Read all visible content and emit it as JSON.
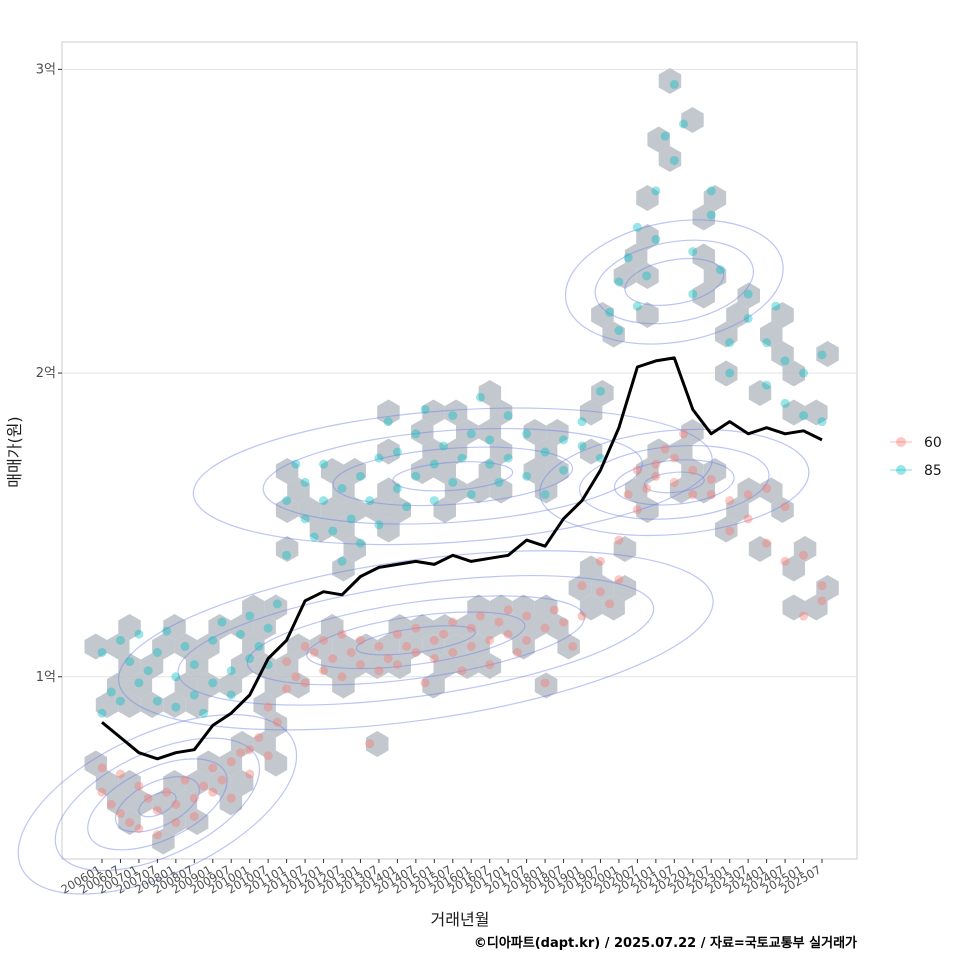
{
  "chart_data": {
    "type": "scatter",
    "ylabel": "매매가(원)",
    "xlabel": "거래년월",
    "caption": "©디아파트(dapt.kr) / 2025.07.22 / 자료=국토교통부 실거래가",
    "ylim": [
      0.4,
      3.09
    ],
    "y_ticks": [
      {
        "value": 1,
        "label": "1억"
      },
      {
        "value": 2,
        "label": "2억"
      },
      {
        "value": 3,
        "label": "3억"
      }
    ],
    "x_ticks": [
      "200601",
      "200607",
      "200701",
      "200707",
      "200801",
      "200807",
      "200901",
      "200907",
      "201001",
      "201007",
      "201101",
      "201107",
      "201201",
      "201207",
      "201301",
      "201307",
      "201401",
      "201407",
      "201501",
      "201507",
      "201601",
      "201607",
      "201701",
      "201707",
      "201801",
      "201807",
      "201901",
      "201907",
      "202001",
      "202007",
      "202101",
      "202107",
      "202201",
      "202207",
      "202301",
      "202307",
      "202401",
      "202407",
      "202501",
      "202507"
    ],
    "legend": {
      "items": [
        {
          "label": "60",
          "color": "#f8766d"
        },
        {
          "label": "85",
          "color": "#00bfc4"
        }
      ]
    },
    "colors": {
      "hex": "#b8bec6",
      "trend": "#000000",
      "contour": "#6b7fe6",
      "grid": "#e3e3e3",
      "frame": "#cccccc"
    },
    "trend_line": {
      "x_index": [
        0,
        1,
        2,
        3,
        4,
        5,
        6,
        7,
        8,
        9,
        10,
        11,
        12,
        13,
        14,
        15,
        16,
        17,
        18,
        19,
        20,
        21,
        22,
        23,
        24,
        25,
        26,
        27,
        28,
        29,
        30,
        31,
        32,
        33,
        34,
        35,
        36,
        37,
        38,
        39
      ],
      "values": [
        0.85,
        0.8,
        0.75,
        0.73,
        0.75,
        0.76,
        0.84,
        0.88,
        0.94,
        1.06,
        1.12,
        1.25,
        1.28,
        1.27,
        1.33,
        1.36,
        1.37,
        1.38,
        1.37,
        1.4,
        1.38,
        1.39,
        1.4,
        1.45,
        1.43,
        1.52,
        1.58,
        1.68,
        1.82,
        2.02,
        2.04,
        2.05,
        1.88,
        1.8,
        1.84,
        1.8,
        1.82,
        1.8,
        1.81,
        1.78
      ]
    },
    "series": [
      {
        "name": "60",
        "points": [
          [
            0,
            0.7
          ],
          [
            0,
            0.62
          ],
          [
            0.5,
            0.58
          ],
          [
            1,
            0.68
          ],
          [
            1,
            0.55
          ],
          [
            1.5,
            0.52
          ],
          [
            2,
            0.64
          ],
          [
            2,
            0.5
          ],
          [
            2.5,
            0.6
          ],
          [
            3,
            0.56
          ],
          [
            3,
            0.48
          ],
          [
            3.5,
            0.62
          ],
          [
            4,
            0.52
          ],
          [
            4,
            0.58
          ],
          [
            4.5,
            0.66
          ],
          [
            5,
            0.6
          ],
          [
            5,
            0.54
          ],
          [
            5.5,
            0.64
          ],
          [
            6,
            0.62
          ],
          [
            6,
            0.7
          ],
          [
            6.5,
            0.66
          ],
          [
            7,
            0.72
          ],
          [
            7,
            0.6
          ],
          [
            7.5,
            0.75
          ],
          [
            8,
            0.68
          ],
          [
            8,
            0.76
          ],
          [
            8.5,
            0.8
          ],
          [
            9,
            0.74
          ],
          [
            9,
            0.9
          ],
          [
            9.5,
            0.85
          ],
          [
            10,
            0.96
          ],
          [
            10,
            1.05
          ],
          [
            10.5,
            1.0
          ],
          [
            11,
            1.1
          ],
          [
            11,
            0.98
          ],
          [
            11.5,
            1.08
          ],
          [
            12,
            1.12
          ],
          [
            12,
            1.02
          ],
          [
            12.5,
            1.06
          ],
          [
            13,
            1.14
          ],
          [
            13,
            1.0
          ],
          [
            13.5,
            1.08
          ],
          [
            14,
            1.04
          ],
          [
            14,
            1.12
          ],
          [
            14.5,
            0.78
          ],
          [
            15,
            1.1
          ],
          [
            15,
            1.02
          ],
          [
            15.5,
            1.06
          ],
          [
            16,
            1.14
          ],
          [
            16,
            1.04
          ],
          [
            16.5,
            1.1
          ],
          [
            17,
            1.08
          ],
          [
            17,
            1.16
          ],
          [
            17.5,
            0.98
          ],
          [
            18,
            1.12
          ],
          [
            18,
            1.06
          ],
          [
            18.5,
            1.14
          ],
          [
            19,
            1.08
          ],
          [
            19,
            1.18
          ],
          [
            19.5,
            1.02
          ],
          [
            20,
            1.16
          ],
          [
            20,
            1.1
          ],
          [
            20.5,
            1.2
          ],
          [
            21,
            1.12
          ],
          [
            21,
            1.04
          ],
          [
            21.5,
            1.18
          ],
          [
            22,
            1.14
          ],
          [
            22,
            1.22
          ],
          [
            22.5,
            1.08
          ],
          [
            23,
            1.2
          ],
          [
            23,
            1.12
          ],
          [
            24,
            1.16
          ],
          [
            24,
            0.98
          ],
          [
            24.5,
            1.22
          ],
          [
            25,
            1.18
          ],
          [
            25.5,
            1.1
          ],
          [
            26,
            1.2
          ],
          [
            26,
            1.3
          ],
          [
            27,
            1.28
          ],
          [
            27,
            1.38
          ],
          [
            27.5,
            1.24
          ],
          [
            28,
            1.32
          ],
          [
            28,
            1.45
          ],
          [
            28.5,
            1.6
          ],
          [
            29,
            1.55
          ],
          [
            29,
            1.68
          ],
          [
            29.5,
            1.62
          ],
          [
            30,
            1.7
          ],
          [
            30,
            1.66
          ],
          [
            30.5,
            1.75
          ],
          [
            31,
            1.64
          ],
          [
            31,
            1.72
          ],
          [
            31.5,
            1.8
          ],
          [
            32,
            1.6
          ],
          [
            32,
            1.68
          ],
          [
            33,
            1.65
          ],
          [
            33,
            1.6
          ],
          [
            34,
            1.48
          ],
          [
            34,
            1.58
          ],
          [
            35,
            1.6
          ],
          [
            35,
            1.52
          ],
          [
            36,
            1.44
          ],
          [
            36,
            1.62
          ],
          [
            37,
            1.56
          ],
          [
            37,
            1.38
          ],
          [
            38,
            1.4
          ],
          [
            38,
            1.2
          ],
          [
            39,
            1.3
          ],
          [
            39,
            1.25
          ]
        ]
      },
      {
        "name": "85",
        "points": [
          [
            0,
            0.88
          ],
          [
            0,
            1.08
          ],
          [
            0.5,
            0.95
          ],
          [
            1,
            1.12
          ],
          [
            1,
            0.92
          ],
          [
            1.5,
            1.05
          ],
          [
            2,
            0.98
          ],
          [
            2,
            1.14
          ],
          [
            2.5,
            1.02
          ],
          [
            3,
            1.08
          ],
          [
            3,
            0.92
          ],
          [
            3.5,
            1.15
          ],
          [
            4,
            1.0
          ],
          [
            4,
            0.9
          ],
          [
            4.5,
            1.1
          ],
          [
            5,
            0.94
          ],
          [
            5,
            1.04
          ],
          [
            5.5,
            0.88
          ],
          [
            6,
            1.12
          ],
          [
            6,
            0.98
          ],
          [
            6.5,
            1.18
          ],
          [
            7,
            1.02
          ],
          [
            7,
            0.94
          ],
          [
            7.5,
            1.14
          ],
          [
            8,
            1.06
          ],
          [
            8,
            1.2
          ],
          [
            8.5,
            1.1
          ],
          [
            9,
            1.04
          ],
          [
            9,
            1.16
          ],
          [
            9.5,
            1.24
          ],
          [
            10,
            1.4
          ],
          [
            10,
            1.58
          ],
          [
            10.5,
            1.7
          ],
          [
            11,
            1.52
          ],
          [
            11,
            1.64
          ],
          [
            11.5,
            1.46
          ],
          [
            12,
            1.58
          ],
          [
            12,
            1.7
          ],
          [
            12.5,
            1.48
          ],
          [
            13,
            1.62
          ],
          [
            13,
            1.38
          ],
          [
            13.5,
            1.52
          ],
          [
            14,
            1.66
          ],
          [
            14,
            1.44
          ],
          [
            14.5,
            1.58
          ],
          [
            15,
            1.72
          ],
          [
            15,
            1.5
          ],
          [
            15.5,
            1.84
          ],
          [
            16,
            1.62
          ],
          [
            16,
            1.74
          ],
          [
            16.5,
            1.56
          ],
          [
            17,
            1.8
          ],
          [
            17,
            1.66
          ],
          [
            17.5,
            1.88
          ],
          [
            18,
            1.7
          ],
          [
            18,
            1.58
          ],
          [
            18.5,
            1.76
          ],
          [
            19,
            1.86
          ],
          [
            19,
            1.64
          ],
          [
            19.5,
            1.72
          ],
          [
            20,
            1.8
          ],
          [
            20,
            1.6
          ],
          [
            20.5,
            1.92
          ],
          [
            21,
            1.7
          ],
          [
            21,
            1.78
          ],
          [
            21.5,
            1.64
          ],
          [
            22,
            1.86
          ],
          [
            22,
            1.72
          ],
          [
            23,
            1.8
          ],
          [
            23,
            1.66
          ],
          [
            24,
            1.74
          ],
          [
            24,
            1.6
          ],
          [
            25,
            1.78
          ],
          [
            25,
            1.68
          ],
          [
            26,
            1.76
          ],
          [
            26,
            1.84
          ],
          [
            27,
            1.72
          ],
          [
            27,
            1.94
          ],
          [
            27.5,
            2.2
          ],
          [
            28,
            2.3
          ],
          [
            28,
            2.14
          ],
          [
            28.5,
            2.38
          ],
          [
            29,
            2.22
          ],
          [
            29,
            2.48
          ],
          [
            29.5,
            2.32
          ],
          [
            30,
            2.44
          ],
          [
            30,
            2.6
          ],
          [
            30.5,
            2.78
          ],
          [
            31,
            2.95
          ],
          [
            31,
            2.7
          ],
          [
            31.5,
            2.82
          ],
          [
            32,
            2.4
          ],
          [
            32,
            2.26
          ],
          [
            33,
            2.52
          ],
          [
            33,
            2.6
          ],
          [
            33.5,
            2.34
          ],
          [
            34,
            2.1
          ],
          [
            34,
            2.0
          ],
          [
            35,
            2.18
          ],
          [
            35,
            2.26
          ],
          [
            36,
            2.1
          ],
          [
            36,
            1.96
          ],
          [
            36.5,
            2.22
          ],
          [
            37,
            1.9
          ],
          [
            37,
            2.04
          ],
          [
            38,
            1.86
          ],
          [
            38,
            2.0
          ],
          [
            39,
            1.84
          ],
          [
            39,
            2.06
          ]
        ]
      }
    ]
  }
}
